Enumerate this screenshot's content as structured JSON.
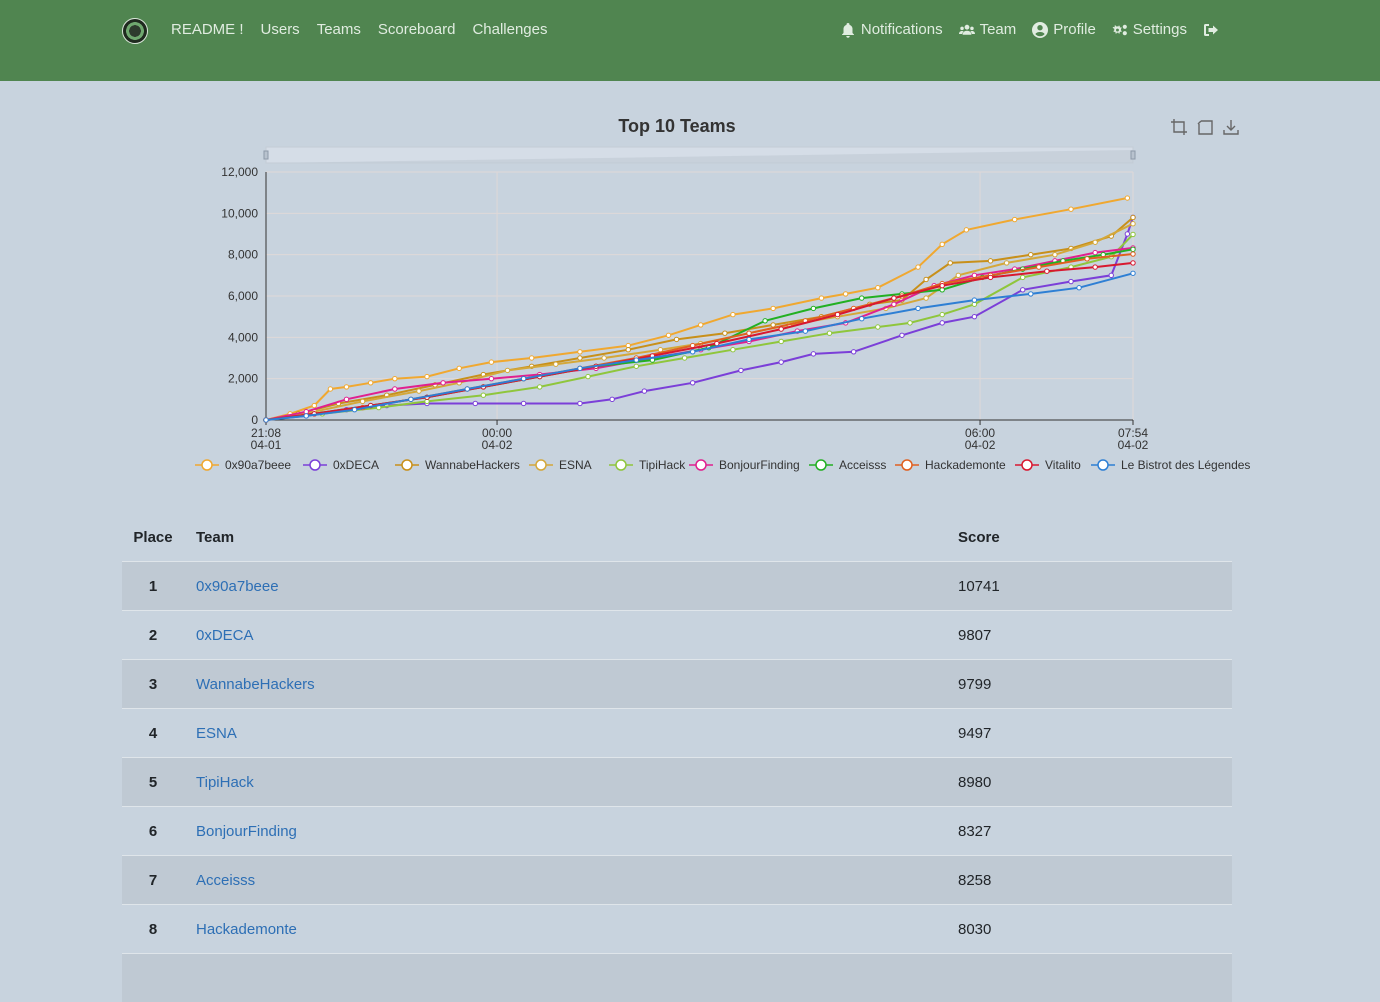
{
  "nav": {
    "left": [
      "README !",
      "Users",
      "Teams",
      "Scoreboard",
      "Challenges"
    ],
    "right": [
      {
        "label": "Notifications",
        "icon": "bell-icon"
      },
      {
        "label": "Team",
        "icon": "users-icon"
      },
      {
        "label": "Profile",
        "icon": "user-circle-icon"
      },
      {
        "label": "Settings",
        "icon": "gears-icon"
      },
      {
        "label": "",
        "icon": "logout-icon"
      }
    ]
  },
  "chart_data": {
    "type": "line",
    "title": "Top 10 Teams",
    "ylim": [
      0,
      12000
    ],
    "yticks": [
      "0",
      "2,000",
      "4,000",
      "6,000",
      "8,000",
      "10,000",
      "12,000"
    ],
    "xticks": [
      {
        "time": "21:08",
        "date": "04-01",
        "hour": 0
      },
      {
        "time": "00:00",
        "date": "04-02",
        "hour": 2.87
      },
      {
        "time": "06:00",
        "date": "04-02",
        "hour": 8.87
      },
      {
        "time": "07:54",
        "date": "04-02",
        "hour": 10.77
      }
    ],
    "x_unit": "hours since 21:08 04-01",
    "grid": true,
    "legend_position": "bottom",
    "series": [
      {
        "name": "0x90a7beee",
        "color": "#f0a830",
        "x": [
          0,
          0.3,
          0.6,
          0.8,
          1.0,
          1.3,
          1.6,
          2.0,
          2.4,
          2.8,
          3.3,
          3.9,
          4.5,
          5.0,
          5.4,
          5.8,
          6.3,
          6.9,
          7.2,
          7.6,
          8.1,
          8.4,
          8.7,
          9.3,
          10.0,
          10.7
        ],
        "y": [
          0,
          300,
          700,
          1500,
          1600,
          1800,
          2000,
          2100,
          2500,
          2800,
          3000,
          3300,
          3600,
          4100,
          4600,
          5100,
          5400,
          5900,
          6100,
          6400,
          7400,
          8500,
          9200,
          9700,
          10200,
          10741
        ]
      },
      {
        "name": "0xDECA",
        "color": "#7b3fd8",
        "x": [
          0,
          0.5,
          1.0,
          1.5,
          2.0,
          2.6,
          3.2,
          3.9,
          4.3,
          4.7,
          5.3,
          5.9,
          6.4,
          6.8,
          7.3,
          7.9,
          8.4,
          8.8,
          9.4,
          10.0,
          10.5,
          10.7,
          10.77
        ],
        "y": [
          0,
          200,
          500,
          700,
          800,
          800,
          800,
          800,
          1000,
          1400,
          1800,
          2400,
          2800,
          3200,
          3300,
          4100,
          4700,
          5000,
          6300,
          6700,
          7000,
          9000,
          9807
        ]
      },
      {
        "name": "WannabeHackers",
        "color": "#c8901a",
        "x": [
          0,
          0.4,
          0.9,
          1.5,
          2.1,
          2.7,
          3.3,
          3.9,
          4.5,
          5.1,
          5.7,
          6.3,
          6.9,
          7.5,
          7.9,
          8.2,
          8.5,
          9.0,
          9.5,
          10.0,
          10.5,
          10.77
        ],
        "y": [
          0,
          300,
          800,
          1200,
          1700,
          2200,
          2600,
          3000,
          3400,
          3900,
          4200,
          4600,
          5000,
          5600,
          5800,
          6800,
          7600,
          7700,
          8000,
          8300,
          8900,
          9799
        ]
      },
      {
        "name": "ESNA",
        "color": "#d4a83a",
        "x": [
          0,
          0.6,
          1.2,
          1.9,
          2.4,
          3.0,
          3.6,
          4.2,
          4.9,
          5.4,
          6.0,
          6.5,
          7.1,
          7.7,
          8.2,
          8.6,
          9.2,
          9.8,
          10.3,
          10.77
        ],
        "y": [
          0,
          400,
          900,
          1400,
          1800,
          2400,
          2700,
          3000,
          3400,
          3700,
          4200,
          4600,
          5000,
          5400,
          5900,
          7000,
          7600,
          8000,
          8600,
          9497
        ]
      },
      {
        "name": "TipiHack",
        "color": "#8fc63c",
        "x": [
          0,
          0.7,
          1.4,
          2.0,
          2.7,
          3.4,
          4.0,
          4.6,
          5.2,
          5.8,
          6.4,
          7.0,
          7.6,
          8.0,
          8.4,
          8.8,
          9.4,
          10.0,
          10.5,
          10.77
        ],
        "y": [
          0,
          300,
          600,
          900,
          1200,
          1600,
          2100,
          2600,
          3000,
          3400,
          3800,
          4200,
          4500,
          4700,
          5100,
          5600,
          6900,
          7400,
          7900,
          8980
        ]
      },
      {
        "name": "BonjourFinding",
        "color": "#e0208f",
        "x": [
          0,
          0.5,
          1.0,
          1.6,
          2.2,
          2.8,
          3.4,
          4.1,
          4.8,
          5.4,
          6.0,
          6.6,
          7.2,
          7.8,
          8.3,
          8.8,
          9.3,
          9.8,
          10.3,
          10.77
        ],
        "y": [
          0,
          400,
          1000,
          1500,
          1800,
          2000,
          2200,
          2500,
          3000,
          3400,
          3800,
          4300,
          4700,
          5600,
          6500,
          7000,
          7300,
          7700,
          8100,
          8327
        ]
      },
      {
        "name": "Acceisss",
        "color": "#22b022",
        "x": [
          0,
          0.6,
          1.3,
          2.0,
          2.7,
          3.4,
          4.1,
          4.8,
          5.5,
          6.2,
          6.8,
          7.4,
          7.9,
          8.4,
          8.9,
          9.4,
          9.9,
          10.4,
          10.77
        ],
        "y": [
          0,
          300,
          700,
          1100,
          1600,
          2100,
          2600,
          2900,
          3500,
          4800,
          5400,
          5900,
          6100,
          6300,
          6900,
          7300,
          7700,
          8000,
          8258
        ]
      },
      {
        "name": "Hackademonte",
        "color": "#e06020",
        "x": [
          0,
          0.6,
          1.2,
          1.8,
          2.5,
          3.2,
          3.9,
          4.6,
          5.3,
          6.0,
          6.7,
          7.3,
          7.9,
          8.4,
          9.0,
          9.6,
          10.2,
          10.77
        ],
        "y": [
          0,
          300,
          600,
          1000,
          1500,
          2000,
          2500,
          3000,
          3600,
          4200,
          4800,
          5400,
          6000,
          6600,
          7000,
          7400,
          7800,
          8030
        ]
      },
      {
        "name": "Vitalito",
        "color": "#d81830",
        "x": [
          0,
          0.6,
          1.3,
          2.0,
          2.7,
          3.4,
          4.1,
          4.8,
          5.6,
          6.4,
          7.1,
          7.8,
          8.4,
          9.0,
          9.7,
          10.3,
          10.77
        ],
        "y": [
          0,
          300,
          700,
          1100,
          1600,
          2100,
          2600,
          3100,
          3700,
          4400,
          5100,
          5900,
          6500,
          6900,
          7200,
          7400,
          7600
        ]
      },
      {
        "name": "Le Bistrot des Légendes",
        "color": "#2e7fd4",
        "x": [
          0,
          0.5,
          1.1,
          1.8,
          2.5,
          3.2,
          3.9,
          4.6,
          5.3,
          6.0,
          6.7,
          7.4,
          8.1,
          8.8,
          9.5,
          10.1,
          10.77
        ],
        "y": [
          0,
          200,
          500,
          1000,
          1500,
          2000,
          2500,
          2900,
          3300,
          3900,
          4300,
          4900,
          5400,
          5800,
          6100,
          6400,
          7100
        ]
      }
    ]
  },
  "table": {
    "headers": {
      "place": "Place",
      "team": "Team",
      "score": "Score"
    },
    "rows": [
      {
        "place": "1",
        "team": "0x90a7beee",
        "score": "10741"
      },
      {
        "place": "2",
        "team": "0xDECA",
        "score": "9807"
      },
      {
        "place": "3",
        "team": "WannabeHackers",
        "score": "9799"
      },
      {
        "place": "4",
        "team": "ESNA",
        "score": "9497"
      },
      {
        "place": "5",
        "team": "TipiHack",
        "score": "8980"
      },
      {
        "place": "6",
        "team": "BonjourFinding",
        "score": "8327"
      },
      {
        "place": "7",
        "team": "Acceisss",
        "score": "8258"
      },
      {
        "place": "8",
        "team": "Hackademonte",
        "score": "8030"
      }
    ]
  }
}
